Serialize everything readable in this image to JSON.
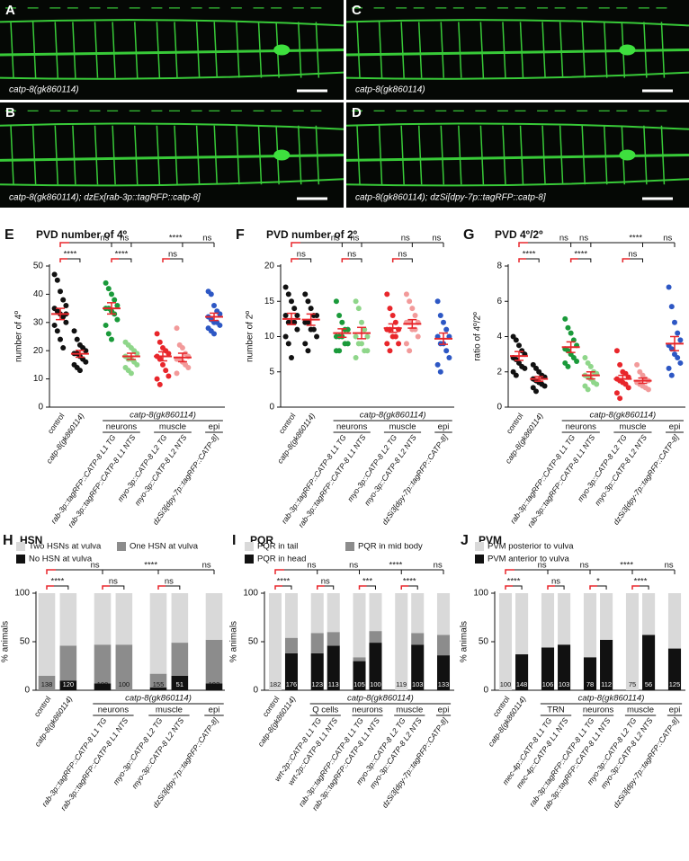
{
  "image_panels": [
    {
      "letter": "A",
      "caption": "catp-8(gk860114)"
    },
    {
      "letter": "B",
      "caption": "catp-8(gk860114); dzEx[rab-3p::tagRFP::catp-8]"
    },
    {
      "letter": "C",
      "caption": "catp-8(gk860114)"
    },
    {
      "letter": "D",
      "caption": "catp-8(gk860114); dzSi[dpy-7p::tagRFP::catp-8]"
    }
  ],
  "chart_data": [
    {
      "type": "dot",
      "letter": "E",
      "title": "PVD number of 4º",
      "ylabel": "number of 4º",
      "ylim": [
        0,
        50
      ],
      "yticks": [
        0,
        10,
        20,
        30,
        40,
        50
      ],
      "categories": [
        "control",
        "catp-8(gk860114)",
        "rab-3p::tagRFP::CATP-8 L1 TG",
        "rab-3p::tagRFP::CATP-8 L1 NTS",
        "myo-3p::CATP-8 L2 TG",
        "myo-3p::CATP-8 L2 NTS",
        "dzSi3[dpy-7p::tagRFP::CATP-8]"
      ],
      "group_label": "catp-8(gk860114)",
      "subgroups": [
        "neurons",
        "muscle",
        "epi"
      ],
      "colors": [
        "#111111",
        "#111111",
        "#1a9a3a",
        "#8fd68a",
        "#e8262b",
        "#f29a9a",
        "#2d57c4"
      ],
      "mean_color": "#e8262b",
      "points": [
        [
          47,
          45,
          41,
          38,
          36,
          35,
          34,
          33,
          32,
          30,
          29,
          27,
          24,
          21,
          33
        ],
        [
          27,
          24,
          22,
          21,
          20,
          19,
          19,
          18,
          17,
          16,
          15,
          14,
          13
        ],
        [
          44,
          42,
          40,
          38,
          36,
          35,
          35,
          34,
          33,
          31,
          29,
          26,
          24
        ],
        [
          23,
          22,
          21,
          20,
          19,
          18,
          17,
          17,
          16,
          15,
          14,
          13,
          12
        ],
        [
          26,
          23,
          21,
          20,
          19,
          18,
          17,
          15,
          13,
          11,
          10,
          8
        ],
        [
          28,
          22,
          21,
          19,
          18,
          17,
          17,
          16,
          15,
          14,
          12
        ],
        [
          41,
          40,
          36,
          34,
          33,
          32,
          31,
          30,
          30,
          29,
          28,
          27,
          26
        ]
      ],
      "means": [
        33,
        18.9,
        35,
        18,
        18,
        17.6,
        32
      ],
      "errors": [
        2,
        1.2,
        2,
        1.1,
        1.6,
        1.5,
        1.3
      ],
      "pair_tests": [
        "****",
        "****",
        "ns"
      ],
      "top_tests": [
        "ns",
        "ns",
        "****",
        "ns"
      ]
    },
    {
      "type": "dot",
      "letter": "F",
      "title": "PVD number of 2º",
      "ylabel": "number of 2º",
      "ylim": [
        0,
        20
      ],
      "yticks": [
        0,
        5,
        10,
        15,
        20
      ],
      "categories": [
        "control",
        "catp-8(gk860114)",
        "rab-3p::tagRFP::CATP-8 L1 TG",
        "rab-3p::tagRFP::CATP-8 L1 NTS",
        "myo-3p::CATP-8 L2 TG",
        "myo-3p::CATP-8 L2 NTS",
        "dzSi3[dpy-7p::tagRFP::CATP-8]"
      ],
      "group_label": "catp-8(gk860114)",
      "subgroups": [
        "neurons",
        "muscle",
        "epi"
      ],
      "colors": [
        "#111111",
        "#111111",
        "#1a9a3a",
        "#8fd68a",
        "#e8262b",
        "#f29a9a",
        "#2d57c4"
      ],
      "mean_color": "#e8262b",
      "points": [
        [
          17,
          16,
          15,
          14,
          13,
          13,
          12,
          12,
          12,
          11,
          10,
          9,
          7
        ],
        [
          16,
          15,
          14,
          13,
          13,
          12,
          12,
          11,
          11,
          10,
          9,
          8
        ],
        [
          15,
          13,
          12,
          11,
          11,
          10,
          10,
          10,
          9,
          9,
          8,
          8
        ],
        [
          15,
          14,
          12,
          11,
          10,
          10,
          9,
          9,
          8,
          8,
          7
        ],
        [
          16,
          14,
          13,
          12,
          11,
          11,
          11,
          10,
          10,
          9,
          9,
          8
        ],
        [
          16,
          15,
          14,
          13,
          12,
          12,
          12,
          11,
          11,
          10,
          9,
          8
        ],
        [
          15,
          13,
          12,
          11,
          10,
          10,
          9,
          9,
          8,
          7,
          6,
          5
        ]
      ],
      "means": [
        12.5,
        12.4,
        10.5,
        10.5,
        11.2,
        11.8,
        9.7
      ],
      "errors": [
        0.8,
        0.8,
        0.6,
        0.8,
        0.6,
        0.6,
        0.8
      ],
      "pair_tests": [
        "ns",
        "ns",
        "ns"
      ],
      "top_tests": [
        "ns",
        "ns",
        "ns",
        "ns"
      ]
    },
    {
      "type": "dot",
      "letter": "G",
      "title": "PVD 4º/2º",
      "ylabel": "ratio of 4º/2º",
      "ylim": [
        0,
        8
      ],
      "yticks": [
        0,
        2,
        4,
        6,
        8
      ],
      "categories": [
        "control",
        "catp-8(gk860114)",
        "rab-3p::tagRFP::CATP-8 L1 TG",
        "rab-3p::tagRFP::CATP-8 L1 NTS",
        "myo-3p::CATP-8 L2 TG",
        "myo-3p::CATP-8 L2 NTS",
        "dzSi3[dpy-7p::tagRFP::CATP-8]"
      ],
      "group_label": "catp-8(gk860114)",
      "subgroups": [
        "neurons",
        "muscle",
        "epi"
      ],
      "colors": [
        "#111111",
        "#111111",
        "#1a9a3a",
        "#8fd68a",
        "#e8262b",
        "#f29a9a",
        "#2d57c4"
      ],
      "mean_color": "#e8262b",
      "points": [
        [
          4.0,
          3.8,
          3.5,
          3.2,
          3.0,
          2.8,
          2.7,
          2.5,
          2.3,
          2.2,
          2.0,
          1.8
        ],
        [
          2.4,
          2.2,
          2.0,
          1.8,
          1.7,
          1.6,
          1.5,
          1.4,
          1.3,
          1.2,
          1.1,
          0.9
        ],
        [
          5.0,
          4.5,
          4.2,
          3.8,
          3.5,
          3.3,
          3.2,
          3.0,
          2.8,
          2.6,
          2.5,
          2.3
        ],
        [
          2.8,
          2.5,
          2.3,
          2.0,
          1.9,
          1.8,
          1.7,
          1.6,
          1.4,
          1.3,
          1.2,
          1.0
        ],
        [
          3.2,
          2.4,
          2.0,
          1.9,
          1.7,
          1.6,
          1.5,
          1.4,
          1.3,
          1.1,
          0.8,
          0.5
        ],
        [
          2.4,
          2.0,
          1.8,
          1.6,
          1.5,
          1.4,
          1.3,
          1.2,
          1.1,
          1.0
        ],
        [
          6.8,
          5.7,
          4.8,
          4.2,
          3.8,
          3.5,
          3.3,
          3.0,
          2.8,
          2.5,
          2.2,
          1.8
        ]
      ],
      "means": [
        2.9,
        1.6,
        3.4,
        1.8,
        1.6,
        1.5,
        3.6
      ],
      "errors": [
        0.25,
        0.13,
        0.3,
        0.2,
        0.2,
        0.15,
        0.4
      ],
      "pair_tests": [
        "****",
        "****",
        "ns"
      ],
      "top_tests": [
        "ns",
        "ns",
        "****",
        "ns"
      ]
    },
    {
      "type": "stacked_bar",
      "letter": "H",
      "title": "HSN",
      "ylabel": "% animals",
      "ylim": [
        0,
        100
      ],
      "yticks": [
        0,
        50,
        100
      ],
      "categories": [
        "control",
        "catp-8(gk860114)",
        "rab-3p::tagRFP::CATP-8 L1 TG",
        "rab-3p::tagRFP::CATP-8 L1 NTS",
        "myo-3p::CATP-8 L2 TG",
        "myo-3p::CATP-8 L2 NTS",
        "dzSi3[dpy-7p::tagRFP::CATP-8]"
      ],
      "group_label": "catp-8(gk860114)",
      "subgroups": [
        "neurons",
        "muscle",
        "epi"
      ],
      "series": [
        {
          "name": "No HSN at vulva",
          "color": "#111111",
          "values": [
            0,
            10,
            7,
            0,
            3,
            15,
            7
          ]
        },
        {
          "name": "One HSN at vulva",
          "color": "#8c8c8c",
          "values": [
            15,
            36,
            40,
            47,
            14,
            34,
            45
          ]
        },
        {
          "name": "Two HSNs at vulva",
          "color": "#d9d9d9",
          "values": [
            85,
            54,
            53,
            53,
            83,
            51,
            48
          ]
        }
      ],
      "n": [
        138,
        120,
        100,
        100,
        155,
        51,
        192
      ],
      "pair_tests": [
        "****",
        "ns",
        "ns"
      ],
      "top_tests": [
        "ns",
        "****",
        "ns"
      ]
    },
    {
      "type": "stacked_bar",
      "letter": "I",
      "title": "PQR",
      "ylabel": "% animals",
      "ylim": [
        0,
        100
      ],
      "yticks": [
        0,
        50,
        100
      ],
      "categories": [
        "control",
        "catp-8(gk860114)",
        "wrt-2p::CATP-8 L1 TG",
        "wrt-2p::CATP-8 L1 NTS",
        "rab-3p::tagRFP::CATP-8 L1 TG",
        "rab-3p::tagRFP::CATP-8 L1 NTS",
        "myo-3p::CATP-8 L2 TG",
        "myo-3p::CATP-8 L2 NTS",
        "dzSi3[dpy-7p::tagRFP::CATP-8]"
      ],
      "group_label": "catp-8(gk860114)",
      "subgroups": [
        "Q cells",
        "neurons",
        "muscle",
        "epi"
      ],
      "series": [
        {
          "name": "PQR in head",
          "color": "#111111",
          "values": [
            0,
            38,
            38,
            46,
            30,
            49,
            0,
            47,
            36
          ]
        },
        {
          "name": "PQR in mid body",
          "color": "#8c8c8c",
          "values": [
            0,
            16,
            21,
            14,
            4,
            12,
            0,
            12,
            21
          ]
        },
        {
          "name": "PQR in tail",
          "color": "#d9d9d9",
          "values": [
            100,
            46,
            41,
            40,
            66,
            39,
            100,
            41,
            43
          ]
        }
      ],
      "n": [
        182,
        176,
        123,
        113,
        105,
        100,
        119,
        103,
        133
      ],
      "pair_tests": [
        "****",
        "ns",
        "***",
        "****"
      ],
      "top_tests": [
        "ns",
        "ns",
        "****",
        "ns"
      ]
    },
    {
      "type": "stacked_bar",
      "letter": "J",
      "title": "PVM",
      "ylabel": "% animals",
      "ylim": [
        0,
        100
      ],
      "yticks": [
        0,
        50,
        100
      ],
      "categories": [
        "control",
        "catp-8(gk860114)",
        "mec-4p::CATP-8 L1 TG",
        "mec-4p::CATP-8 L1 NTS",
        "rab-3p::tagRFP::CATP-8 L1 TG",
        "rab-3p::tagRFP::CATP-8 L1 NTS",
        "myo-3p::CATP-8 L2 TG",
        "myo-3p::CATP-8 L2 NTS",
        "dzSi3[dpy-7p::tagRFP::CATP-8]"
      ],
      "group_label": "catp-8(gk860114)",
      "subgroups": [
        "TRN",
        "neurons",
        "muscle",
        "epi"
      ],
      "series": [
        {
          "name": "PVM anterior to vulva",
          "color": "#111111",
          "values": [
            0,
            37,
            44,
            47,
            34,
            52,
            0,
            57,
            43
          ]
        },
        {
          "name": "PVM posterior to vulva",
          "color": "#d9d9d9",
          "values": [
            100,
            63,
            56,
            53,
            66,
            48,
            100,
            43,
            57
          ]
        }
      ],
      "n": [
        100,
        148,
        106,
        103,
        78,
        112,
        75,
        56,
        125
      ],
      "pair_tests": [
        "****",
        "ns",
        "*",
        "****"
      ],
      "top_tests": [
        "ns",
        "ns",
        "****",
        "ns"
      ]
    }
  ]
}
